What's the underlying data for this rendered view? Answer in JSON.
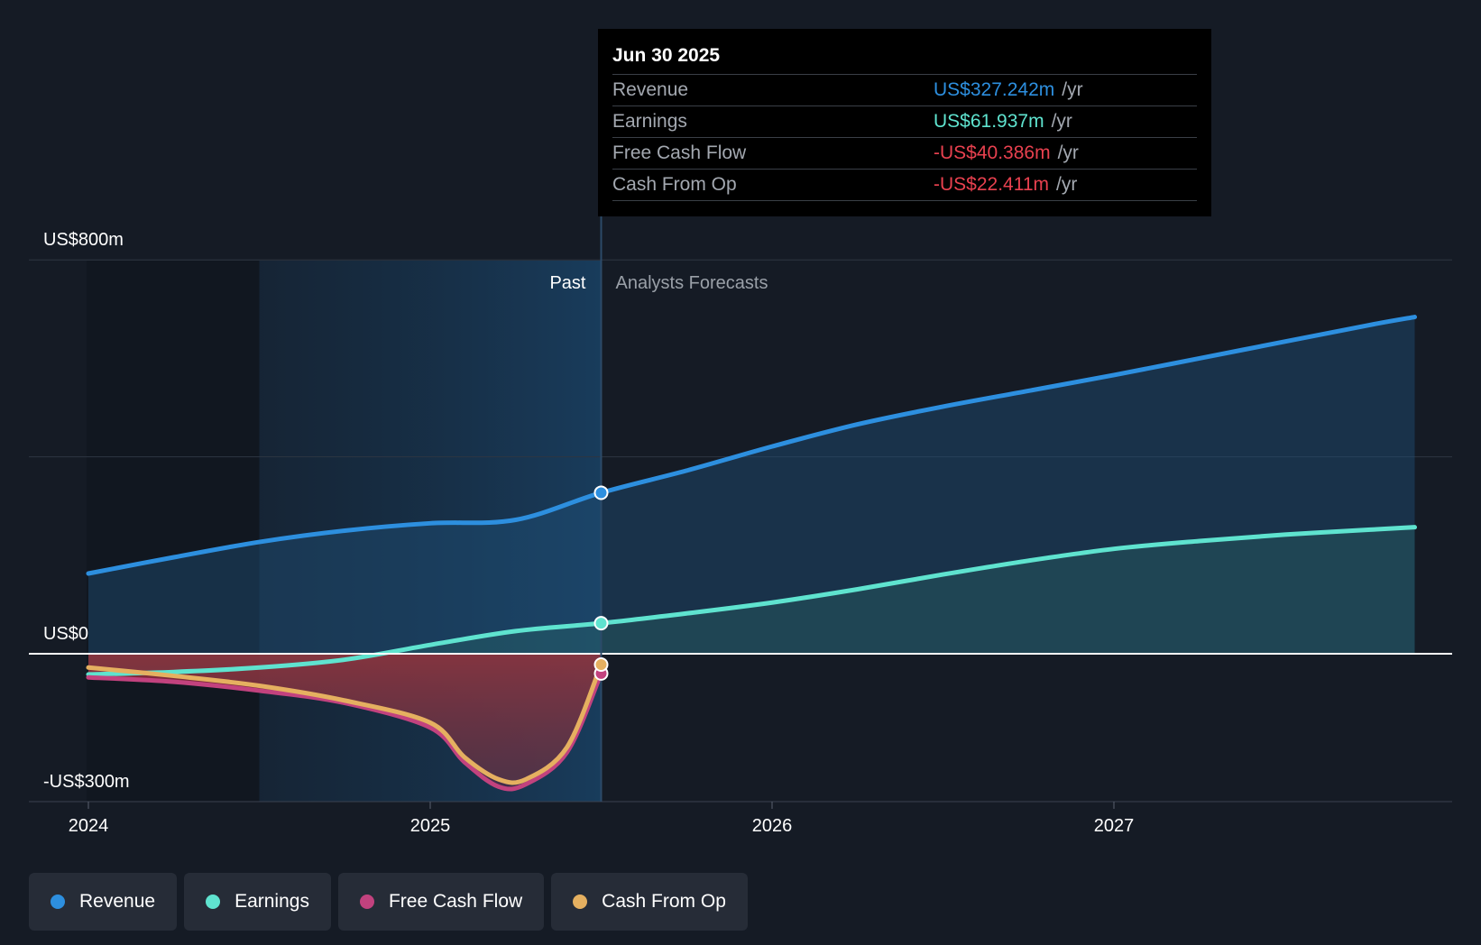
{
  "tooltip": {
    "date": "Jun 30 2025",
    "rows": [
      {
        "name": "Revenue",
        "value": "US$327.242m",
        "unit": "/yr",
        "color": "#2d8fdf"
      },
      {
        "name": "Earnings",
        "value": "US$61.937m",
        "unit": "/yr",
        "color": "#5fe3cf"
      },
      {
        "name": "Free Cash Flow",
        "value": "-US$40.386m",
        "unit": "/yr",
        "color": "#e8414f"
      },
      {
        "name": "Cash From Op",
        "value": "-US$22.411m",
        "unit": "/yr",
        "color": "#e8414f"
      }
    ]
  },
  "legend": [
    {
      "label": "Revenue",
      "color": "#2d8fdf"
    },
    {
      "label": "Earnings",
      "color": "#5fe3cf"
    },
    {
      "label": "Free Cash Flow",
      "color": "#c2427e"
    },
    {
      "label": "Cash From Op",
      "color": "#e5b060"
    }
  ],
  "chart_data": {
    "type": "line",
    "title": "",
    "y_labels": [
      "US$800m",
      "US$0",
      "-US$300m"
    ],
    "ylim": [
      -300,
      800
    ],
    "xlim": [
      2023.83,
      2027.88
    ],
    "x_ticks": [
      2024,
      2025,
      2026,
      2027
    ],
    "x_tick_labels": [
      "2024",
      "2025",
      "2026",
      "2027"
    ],
    "past_label": "Past",
    "forecast_label": "Analysts Forecasts",
    "past_shade_start": 2024.5,
    "divider_x": 2025.5,
    "series": [
      {
        "name": "Revenue",
        "color": "#2d8fdf",
        "points": [
          [
            2024.0,
            163
          ],
          [
            2024.25,
            196
          ],
          [
            2024.5,
            227
          ],
          [
            2024.75,
            250
          ],
          [
            2025.0,
            265
          ],
          [
            2025.25,
            272
          ],
          [
            2025.5,
            327
          ],
          [
            2025.75,
            372
          ],
          [
            2026.0,
            421
          ],
          [
            2026.25,
            466
          ],
          [
            2026.5,
            502
          ],
          [
            2026.75,
            534
          ],
          [
            2027.0,
            566
          ],
          [
            2027.25,
            600
          ],
          [
            2027.5,
            634
          ],
          [
            2027.75,
            668
          ],
          [
            2027.88,
            684
          ]
        ]
      },
      {
        "name": "Earnings",
        "color": "#5fe3cf",
        "points": [
          [
            2024.0,
            -42
          ],
          [
            2024.25,
            -37
          ],
          [
            2024.5,
            -28
          ],
          [
            2024.75,
            -12
          ],
          [
            2025.0,
            18
          ],
          [
            2025.25,
            46
          ],
          [
            2025.5,
            62
          ],
          [
            2025.75,
            82
          ],
          [
            2026.0,
            104
          ],
          [
            2026.25,
            131
          ],
          [
            2026.5,
            161
          ],
          [
            2026.75,
            189
          ],
          [
            2027.0,
            213
          ],
          [
            2027.25,
            229
          ],
          [
            2027.5,
            242
          ],
          [
            2027.75,
            252
          ],
          [
            2027.88,
            257
          ]
        ]
      },
      {
        "name": "Free Cash Flow",
        "color": "#c2427e",
        "points": [
          [
            2024.0,
            -48
          ],
          [
            2024.25,
            -57
          ],
          [
            2024.5,
            -75
          ],
          [
            2024.75,
            -100
          ],
          [
            2025.0,
            -150
          ],
          [
            2025.1,
            -220
          ],
          [
            2025.2,
            -270
          ],
          [
            2025.28,
            -265
          ],
          [
            2025.4,
            -200
          ],
          [
            2025.5,
            -40
          ]
        ]
      },
      {
        "name": "Cash From Op",
        "color": "#e5b060",
        "points": [
          [
            2024.0,
            -28
          ],
          [
            2024.25,
            -45
          ],
          [
            2024.5,
            -65
          ],
          [
            2024.75,
            -95
          ],
          [
            2025.0,
            -140
          ],
          [
            2025.1,
            -210
          ],
          [
            2025.2,
            -255
          ],
          [
            2025.28,
            -255
          ],
          [
            2025.4,
            -190
          ],
          [
            2025.5,
            -22
          ]
        ]
      }
    ]
  }
}
